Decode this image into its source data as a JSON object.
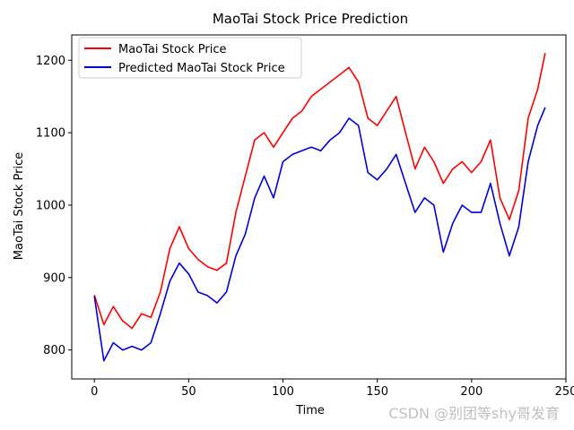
{
  "watermark": "CSDN @别团等shy哥发育",
  "chart_data": {
    "type": "line",
    "title": "MaoTai Stock Price Prediction",
    "xlabel": "Time",
    "ylabel": "MaoTai Stock Price",
    "xlim": [
      -12,
      250
    ],
    "ylim": [
      760,
      1235
    ],
    "xticks": [
      0,
      50,
      100,
      150,
      200,
      250
    ],
    "yticks": [
      800,
      900,
      1000,
      1100,
      1200
    ],
    "grid": false,
    "legend": "upper-left",
    "series": [
      {
        "name": "MaoTai Stock Price",
        "color": "#ff0000",
        "x": [
          0,
          5,
          10,
          15,
          20,
          25,
          30,
          35,
          40,
          45,
          50,
          55,
          60,
          65,
          70,
          75,
          80,
          85,
          90,
          95,
          100,
          105,
          110,
          115,
          120,
          125,
          130,
          135,
          140,
          145,
          150,
          155,
          160,
          165,
          170,
          175,
          180,
          185,
          190,
          195,
          200,
          205,
          210,
          215,
          220,
          225,
          230,
          235,
          239
        ],
        "values": [
          876,
          835,
          860,
          840,
          830,
          850,
          845,
          880,
          940,
          970,
          940,
          925,
          915,
          910,
          920,
          990,
          1040,
          1090,
          1100,
          1080,
          1100,
          1120,
          1130,
          1150,
          1160,
          1170,
          1180,
          1190,
          1170,
          1120,
          1110,
          1130,
          1150,
          1100,
          1050,
          1080,
          1060,
          1030,
          1050,
          1060,
          1045,
          1060,
          1090,
          1010,
          980,
          1020,
          1120,
          1160,
          1210
        ]
      },
      {
        "name": "Predicted MaoTai Stock Price",
        "color": "#0000dd",
        "x": [
          0,
          5,
          10,
          15,
          20,
          25,
          30,
          35,
          40,
          45,
          50,
          55,
          60,
          65,
          70,
          75,
          80,
          85,
          90,
          95,
          100,
          105,
          110,
          115,
          120,
          125,
          130,
          135,
          140,
          145,
          150,
          155,
          160,
          165,
          170,
          175,
          180,
          185,
          190,
          195,
          200,
          205,
          210,
          215,
          220,
          225,
          230,
          235,
          239
        ],
        "values": [
          874,
          785,
          810,
          800,
          805,
          800,
          810,
          850,
          895,
          920,
          905,
          880,
          875,
          865,
          880,
          930,
          960,
          1010,
          1040,
          1010,
          1060,
          1070,
          1075,
          1080,
          1075,
          1090,
          1100,
          1120,
          1110,
          1045,
          1035,
          1050,
          1070,
          1030,
          990,
          1010,
          1000,
          935,
          975,
          1000,
          990,
          990,
          1030,
          975,
          930,
          970,
          1060,
          1110,
          1135
        ]
      }
    ]
  }
}
